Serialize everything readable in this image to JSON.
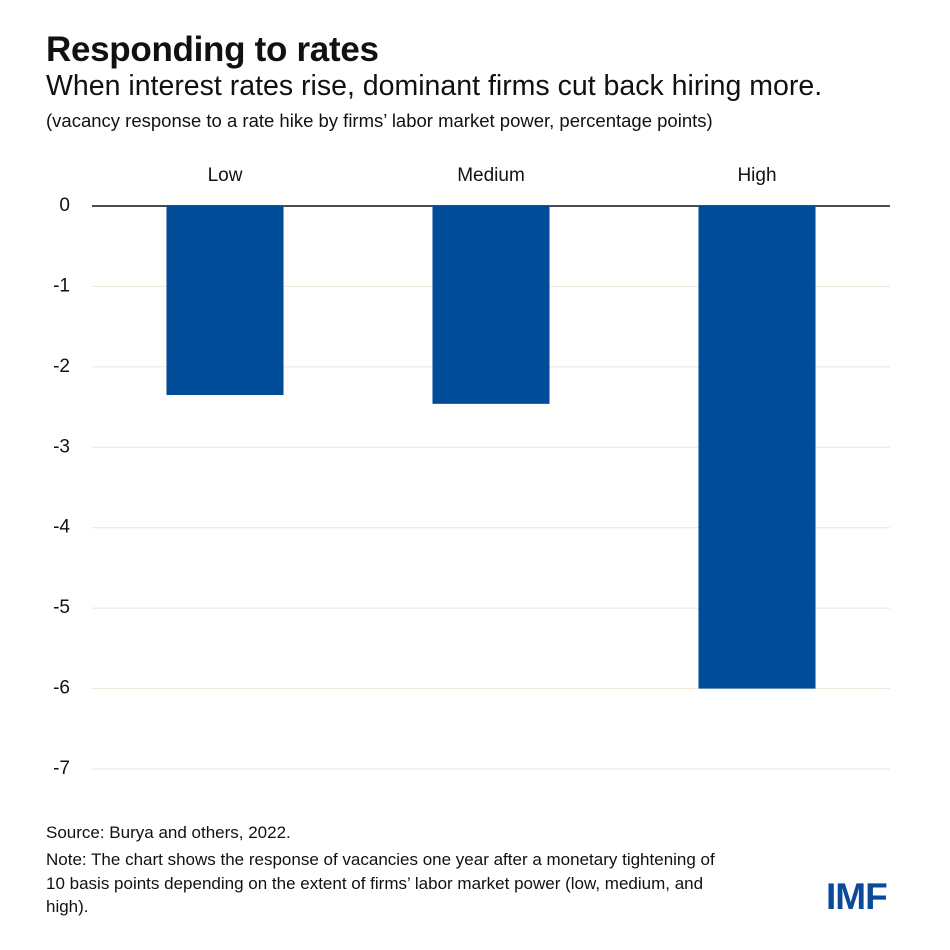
{
  "chart_data": {
    "type": "bar",
    "title": "Responding to rates",
    "subtitle": "When interest rates rise, dominant firms cut back hiring more.",
    "y_label": "(vacancy response to a rate hike by firms’ labor market power, percentage points)",
    "categories": [
      "Low",
      "Medium",
      "High"
    ],
    "values": [
      -2.35,
      -2.46,
      -6.0
    ],
    "color": "#014c99",
    "ylim": [
      -7,
      0
    ],
    "yticks": [
      0,
      -1,
      -2,
      -3,
      -4,
      -5,
      -6,
      -7
    ],
    "grid": true,
    "source": "Source: Burya and others, 2022.",
    "note": "Note: The chart shows the response of vacancies one year after a monetary tightening of 10 basis points depending on the extent of firms’ labor market power (low, medium, and high).",
    "logo": "IMF"
  }
}
